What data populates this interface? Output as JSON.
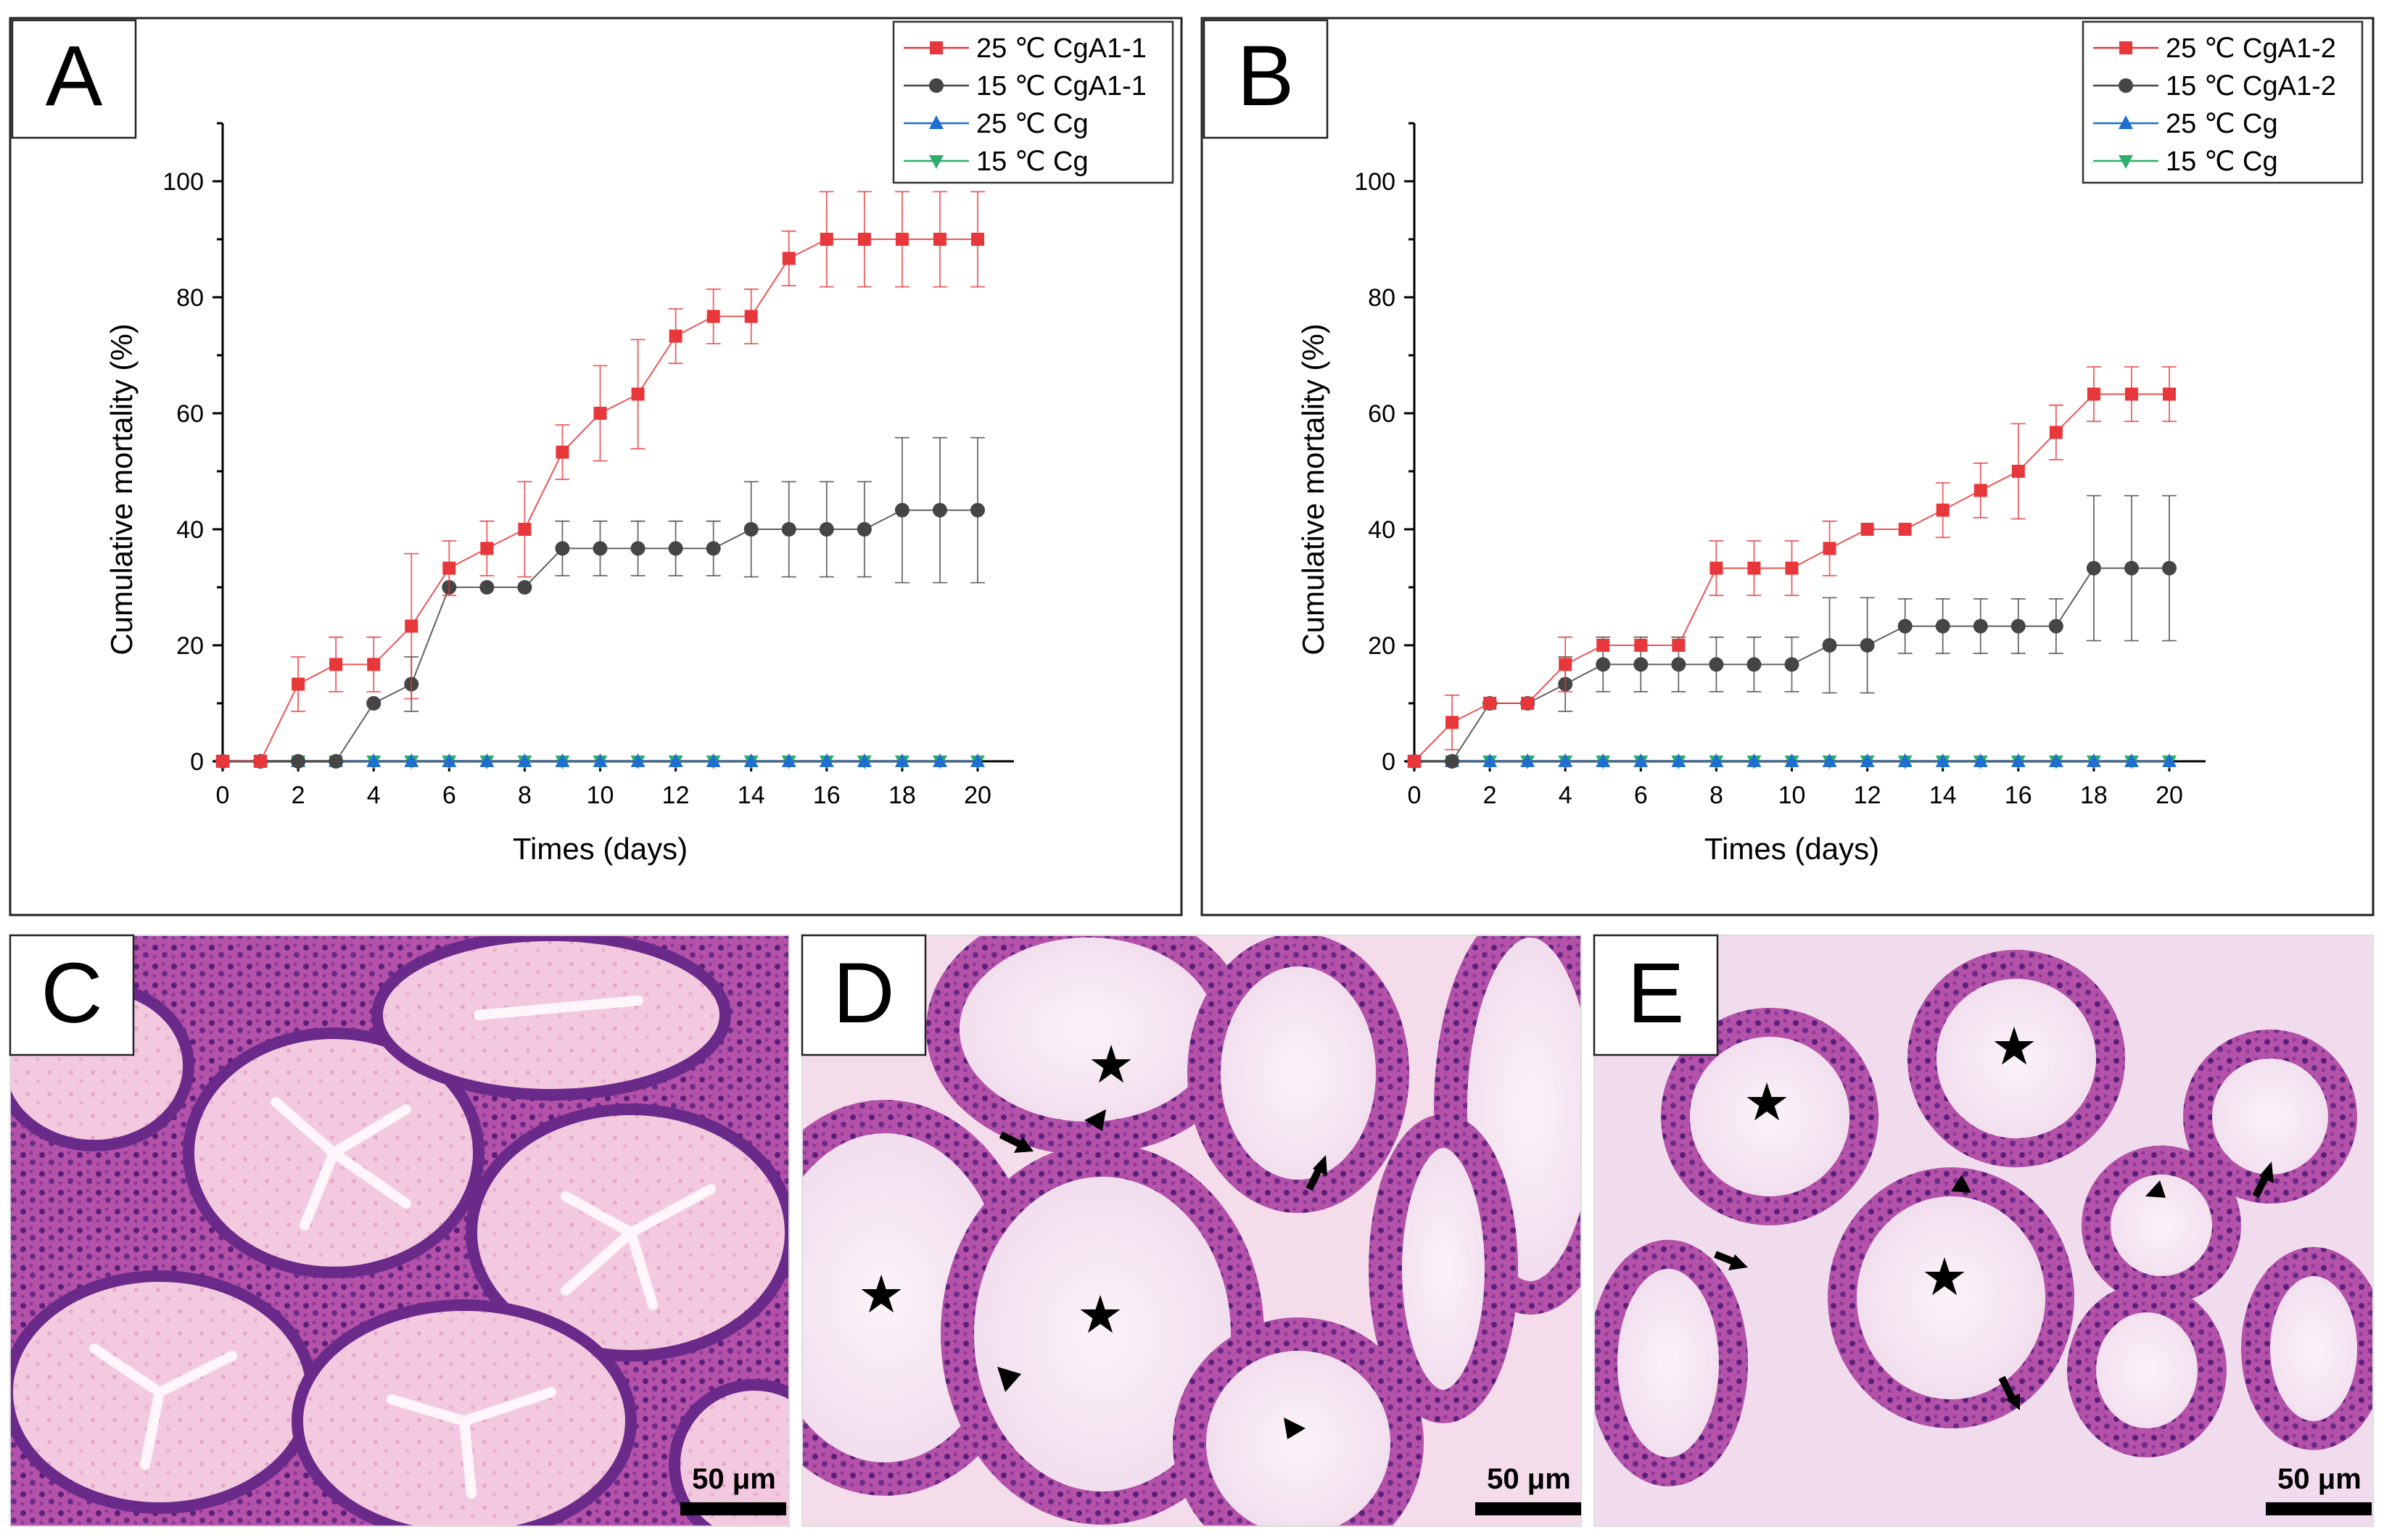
{
  "figure": {
    "panel_labels": {
      "A": "A",
      "B": "B",
      "C": "C",
      "D": "D",
      "E": "E"
    },
    "scale_bars": {
      "C": "50 μm",
      "D": "50 μm",
      "E": "50 μm"
    },
    "micrograph_colors": {
      "tissue": "#b04aa8",
      "lumen": "#f2e4f0",
      "nuclei": "#4a1a6e"
    }
  },
  "chart_data": [
    {
      "type": "line",
      "panel": "A",
      "xlabel": "Times (days)",
      "ylabel": "Cumulative mortality (%)",
      "xlim": [
        0,
        20
      ],
      "ylim": [
        0,
        110
      ],
      "xticks": [
        0,
        2,
        4,
        6,
        8,
        10,
        12,
        14,
        16,
        18,
        20
      ],
      "yticks": [
        0,
        20,
        40,
        60,
        80,
        100
      ],
      "legend_position": "top-right",
      "series": [
        {
          "name": "25 ℃ CgA1-1",
          "color": "#e8373a",
          "marker": "square",
          "x": [
            0,
            1,
            2,
            3,
            4,
            5,
            6,
            7,
            8,
            9,
            10,
            11,
            12,
            13,
            14,
            15,
            16,
            17,
            18,
            19,
            20
          ],
          "values": [
            0,
            0,
            13.3,
            16.7,
            16.7,
            23.3,
            33.3,
            36.7,
            40,
            53.3,
            60,
            63.3,
            73.3,
            76.7,
            76.7,
            86.7,
            90,
            90,
            90,
            90,
            90
          ],
          "errors": [
            0,
            0,
            4.7,
            4.7,
            4.7,
            12.5,
            4.7,
            4.7,
            8.2,
            4.7,
            8.2,
            9.4,
            4.7,
            4.7,
            4.7,
            4.7,
            8.2,
            8.2,
            8.2,
            8.2,
            8.2
          ]
        },
        {
          "name": "15 ℃ CgA1-1",
          "color": "#454545",
          "marker": "circle",
          "x": [
            0,
            1,
            2,
            3,
            4,
            5,
            6,
            7,
            8,
            9,
            10,
            11,
            12,
            13,
            14,
            15,
            16,
            17,
            18,
            19,
            20
          ],
          "values": [
            0,
            0,
            0,
            0,
            10,
            13.3,
            30,
            30,
            30,
            36.7,
            36.7,
            36.7,
            36.7,
            36.7,
            40,
            40,
            40,
            40,
            43.3,
            43.3,
            43.3
          ],
          "errors": [
            0,
            0,
            0,
            0,
            0,
            4.7,
            0,
            0,
            0,
            4.7,
            4.7,
            4.7,
            4.7,
            4.7,
            8.2,
            8.2,
            8.2,
            8.2,
            12.5,
            12.5,
            12.5
          ]
        },
        {
          "name": "25 ℃ Cg",
          "color": "#1f6fd1",
          "marker": "triangle-up",
          "x": [
            0,
            1,
            2,
            3,
            4,
            5,
            6,
            7,
            8,
            9,
            10,
            11,
            12,
            13,
            14,
            15,
            16,
            17,
            18,
            19,
            20
          ],
          "values": [
            0,
            0,
            0,
            0,
            0,
            0,
            0,
            0,
            0,
            0,
            0,
            0,
            0,
            0,
            0,
            0,
            0,
            0,
            0,
            0,
            0
          ]
        },
        {
          "name": "15 ℃ Cg",
          "color": "#2fae6b",
          "marker": "triangle-down",
          "x": [
            0,
            1,
            2,
            3,
            4,
            5,
            6,
            7,
            8,
            9,
            10,
            11,
            12,
            13,
            14,
            15,
            16,
            17,
            18,
            19,
            20
          ],
          "values": [
            0,
            0,
            0,
            0,
            0,
            0,
            0,
            0,
            0,
            0,
            0,
            0,
            0,
            0,
            0,
            0,
            0,
            0,
            0,
            0,
            0
          ]
        }
      ]
    },
    {
      "type": "line",
      "panel": "B",
      "xlabel": "Times (days)",
      "ylabel": "Cumulative mortality (%)",
      "xlim": [
        0,
        20
      ],
      "ylim": [
        0,
        110
      ],
      "xticks": [
        0,
        2,
        4,
        6,
        8,
        10,
        12,
        14,
        16,
        18,
        20
      ],
      "yticks": [
        0,
        20,
        40,
        60,
        80,
        100
      ],
      "legend_position": "top-right",
      "series": [
        {
          "name": "25 ℃ CgA1-2",
          "color": "#e8373a",
          "marker": "square",
          "x": [
            0,
            1,
            2,
            3,
            4,
            5,
            6,
            7,
            8,
            9,
            10,
            11,
            12,
            13,
            14,
            15,
            16,
            17,
            18,
            19,
            20
          ],
          "values": [
            0,
            6.7,
            10,
            10,
            16.7,
            20,
            20,
            20,
            33.3,
            33.3,
            33.3,
            36.7,
            40,
            40,
            43.3,
            46.7,
            50,
            56.7,
            63.3,
            63.3,
            63.3
          ],
          "errors": [
            0,
            4.7,
            0,
            0,
            4.7,
            0,
            0,
            0,
            4.7,
            4.7,
            4.7,
            4.7,
            0,
            0,
            4.7,
            4.7,
            8.2,
            4.7,
            4.7,
            4.7,
            4.7
          ]
        },
        {
          "name": "15 ℃ CgA1-2",
          "color": "#454545",
          "marker": "circle",
          "x": [
            0,
            1,
            2,
            3,
            4,
            5,
            6,
            7,
            8,
            9,
            10,
            11,
            12,
            13,
            14,
            15,
            16,
            17,
            18,
            19,
            20
          ],
          "values": [
            0,
            0,
            10,
            10,
            13.3,
            16.7,
            16.7,
            16.7,
            16.7,
            16.7,
            16.7,
            20,
            20,
            23.3,
            23.3,
            23.3,
            23.3,
            23.3,
            33.3,
            33.3,
            33.3
          ],
          "errors": [
            0,
            0,
            0,
            0,
            4.7,
            4.7,
            4.7,
            4.7,
            4.7,
            4.7,
            4.7,
            8.2,
            8.2,
            4.7,
            4.7,
            4.7,
            4.7,
            4.7,
            12.5,
            12.5,
            12.5
          ]
        },
        {
          "name": "25 ℃ Cg",
          "color": "#1f6fd1",
          "marker": "triangle-up",
          "x": [
            0,
            1,
            2,
            3,
            4,
            5,
            6,
            7,
            8,
            9,
            10,
            11,
            12,
            13,
            14,
            15,
            16,
            17,
            18,
            19,
            20
          ],
          "values": [
            0,
            0,
            0,
            0,
            0,
            0,
            0,
            0,
            0,
            0,
            0,
            0,
            0,
            0,
            0,
            0,
            0,
            0,
            0,
            0,
            0
          ]
        },
        {
          "name": "15 ℃ Cg",
          "color": "#2fae6b",
          "marker": "triangle-down",
          "x": [
            0,
            1,
            2,
            3,
            4,
            5,
            6,
            7,
            8,
            9,
            10,
            11,
            12,
            13,
            14,
            15,
            16,
            17,
            18,
            19,
            20
          ],
          "values": [
            0,
            0,
            0,
            0,
            0,
            0,
            0,
            0,
            0,
            0,
            0,
            0,
            0,
            0,
            0,
            0,
            0,
            0,
            0,
            0,
            0
          ]
        }
      ]
    }
  ]
}
